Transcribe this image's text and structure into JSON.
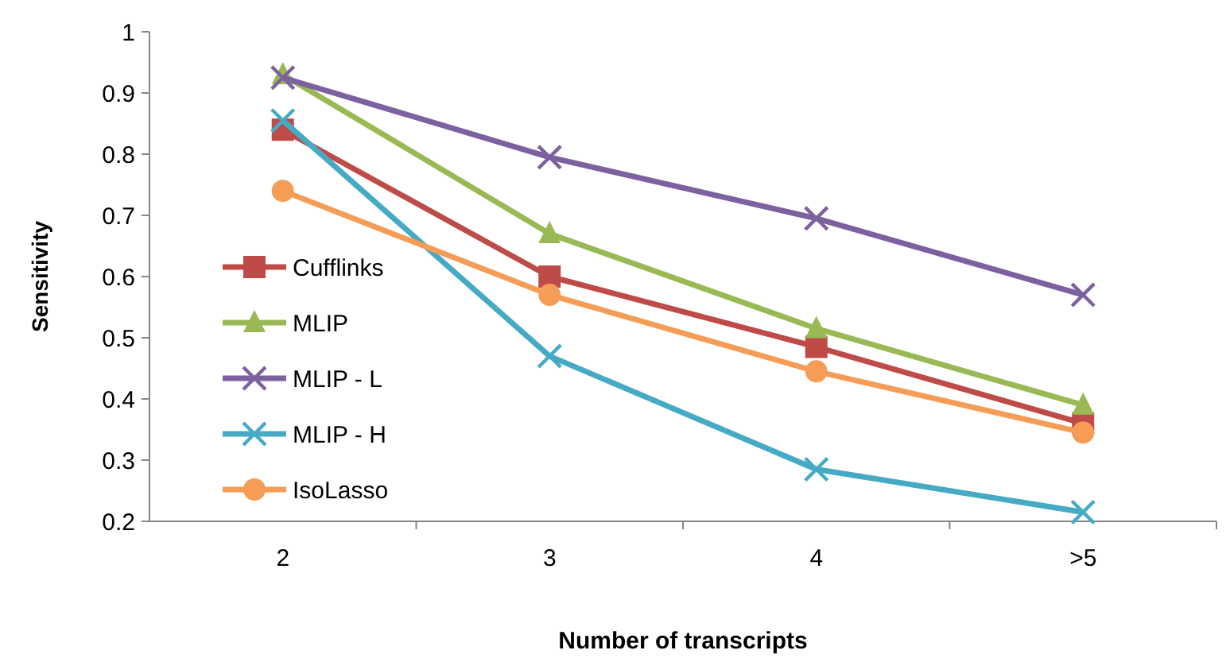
{
  "chart_data": {
    "type": "line",
    "xlabel": "Number of transcripts",
    "ylabel": "Sensitivity",
    "categories": [
      "2",
      "3",
      "4",
      ">5"
    ],
    "series": [
      {
        "name": "Cufflinks",
        "color": "#be4b48",
        "marker": "square",
        "values": [
          0.84,
          0.6,
          0.485,
          0.36
        ]
      },
      {
        "name": "MLIP",
        "color": "#98b954",
        "marker": "triangle",
        "values": [
          0.93,
          0.67,
          0.515,
          0.39
        ]
      },
      {
        "name": "MLIP - L",
        "color": "#7d60a0",
        "marker": "cross",
        "values": [
          0.925,
          0.795,
          0.695,
          0.57
        ]
      },
      {
        "name": "MLIP - H",
        "color": "#46aac5",
        "marker": "cross",
        "values": [
          0.855,
          0.47,
          0.285,
          0.215
        ]
      },
      {
        "name": "IsoLasso",
        "color": "#f59d56",
        "marker": "circle",
        "values": [
          0.74,
          0.57,
          0.445,
          0.345
        ]
      }
    ],
    "ylim": [
      0.2,
      1
    ],
    "yticks": [
      0.2,
      0.3,
      0.4,
      0.5,
      0.6,
      0.7,
      0.8,
      0.9,
      1
    ],
    "grid": false,
    "legend": "left",
    "line_style": "solid"
  }
}
